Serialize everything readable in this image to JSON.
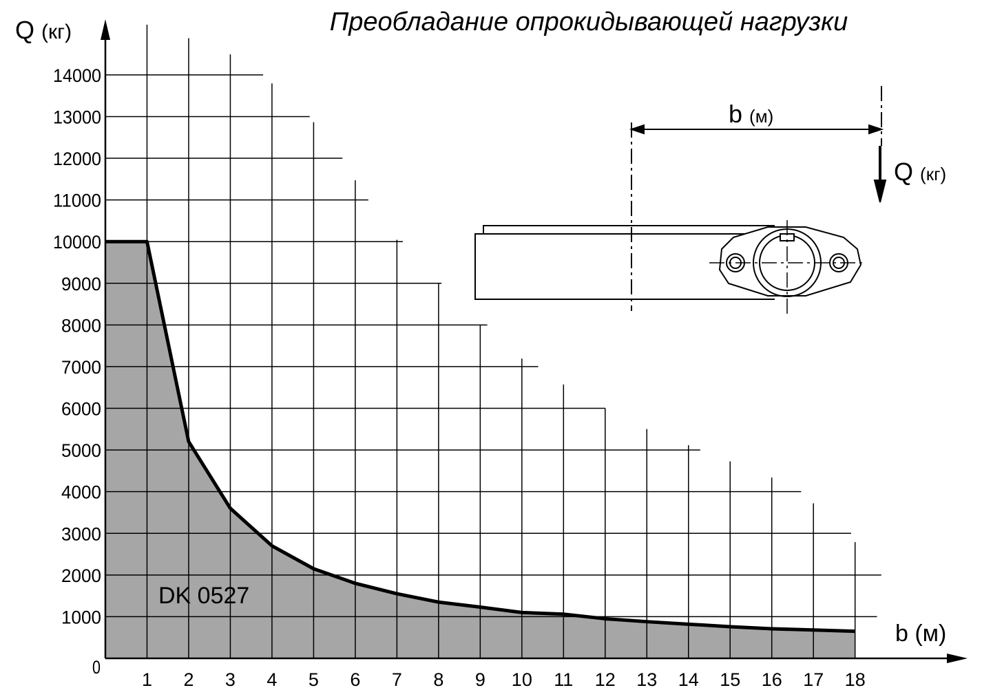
{
  "chart_data": {
    "type": "area",
    "title": "Преобладание опрокидывающей нагрузки",
    "y_label": "Q",
    "y_unit": "(кг)",
    "x_label": "b (м)",
    "annotation": "DK 0527",
    "diagram": {
      "dimension_label": "b",
      "dimension_unit": "(м)",
      "load_label": "Q",
      "load_unit": "(кг)"
    },
    "x": [
      0,
      1,
      2,
      3,
      4,
      5,
      6,
      7,
      8,
      9,
      10,
      11,
      12,
      13,
      14,
      15,
      16,
      17,
      18
    ],
    "series": [
      {
        "name": "DK 0527",
        "color": "#000000",
        "fill": "#a6a6a6",
        "values": [
          10000,
          10000,
          5200,
          3600,
          2700,
          2150,
          1800,
          1550,
          1350,
          1230,
          1100,
          1060,
          950,
          880,
          820,
          760,
          710,
          680,
          650
        ]
      }
    ],
    "xlim": [
      0,
      20.7
    ],
    "ylim": [
      0,
      15500
    ],
    "xticks": [
      1,
      2,
      3,
      4,
      5,
      6,
      7,
      8,
      9,
      10,
      11,
      12,
      13,
      14,
      15,
      16,
      17,
      18
    ],
    "yticks": [
      0,
      1000,
      2000,
      3000,
      4000,
      5000,
      6000,
      7000,
      8000,
      9000,
      10000,
      11000,
      12000,
      13000,
      14000
    ],
    "grid": true
  }
}
